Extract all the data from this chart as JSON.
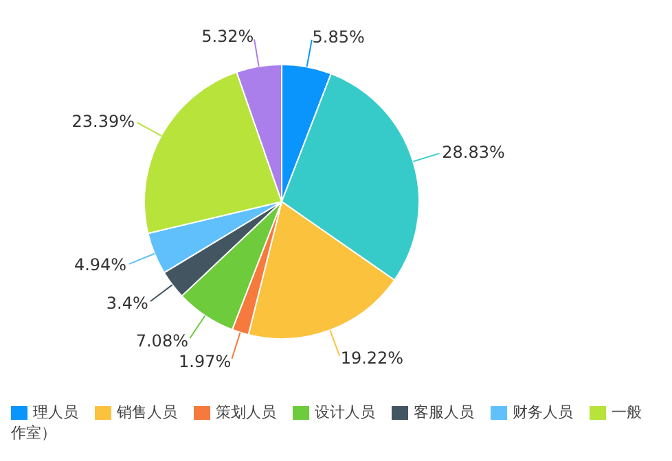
{
  "chart_data": {
    "type": "pie",
    "categories": [
      "理人员",
      null,
      "销售人员",
      "策划人员",
      "设计人员",
      "客服人员",
      "财务人员",
      "一般",
      null
    ],
    "values": [
      5.85,
      28.83,
      19.22,
      1.97,
      7.08,
      3.4,
      4.94,
      23.39,
      5.32
    ],
    "value_labels": [
      "5.85%",
      "28.83%",
      "19.22%",
      "1.97%",
      "7.08%",
      "3.4%",
      "4.94%",
      "23.39%",
      "5.32%"
    ],
    "colors": [
      "#0a95fd",
      "#36cbc9",
      "#fbc23e",
      "#f6793d",
      "#6dcb3c",
      "#425561",
      "#60c0fb",
      "#b7e33b",
      "#aa7eeb"
    ],
    "legend": "bottom",
    "annotations": [
      "作室）"
    ]
  }
}
